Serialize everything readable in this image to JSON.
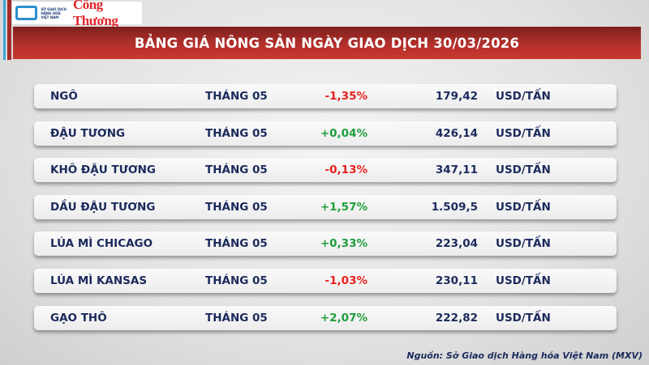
{
  "logo": {
    "mxv_text": "SỞ GIAO DỊCH HÀNG HÓA VIỆT NAM",
    "brand": "Công Thương"
  },
  "header": {
    "title": "BẢNG GIÁ NÔNG SẢN NGÀY GIAO DỊCH 30/03/2026"
  },
  "colors": {
    "negative": "#e8201c",
    "positive": "#1e9e3a",
    "header": "#b3302b",
    "text": "#1b2a5c"
  },
  "rows": [
    {
      "name": "NGÔ",
      "month": "THÁNG 05",
      "change": "-1,35%",
      "price": "179,42",
      "unit": "USD/TẤN",
      "dir": "neg"
    },
    {
      "name": "ĐẬU TƯƠNG",
      "month": "THÁNG 05",
      "change": "+0,04%",
      "price": "426,14",
      "unit": "USD/TẤN",
      "dir": "pos"
    },
    {
      "name": "KHÔ ĐẬU TƯƠNG",
      "month": "THÁNG 05",
      "change": "-0,13%",
      "price": "347,11",
      "unit": "USD/TẤN",
      "dir": "neg"
    },
    {
      "name": "DẦU ĐẬU TƯƠNG",
      "month": "THÁNG 05",
      "change": "+1,57%",
      "price": "1.509,5",
      "unit": "USD/TẤN",
      "dir": "pos"
    },
    {
      "name": "LÚA MÌ CHICAGO",
      "month": "THÁNG 05",
      "change": "+0,33%",
      "price": "223,04",
      "unit": "USD/TẤN",
      "dir": "pos"
    },
    {
      "name": "LÚA MÌ KANSAS",
      "month": "THÁNG 05",
      "change": "-1,03%",
      "price": "230,11",
      "unit": "USD/TẤN",
      "dir": "neg"
    },
    {
      "name": "GẠO THÔ",
      "month": "THÁNG 05",
      "change": "+2,07%",
      "price": "222,82",
      "unit": "USD/TẤN",
      "dir": "pos"
    }
  ],
  "source": "Nguồn: Sở Giao dịch Hàng hóa Việt Nam (MXV)"
}
